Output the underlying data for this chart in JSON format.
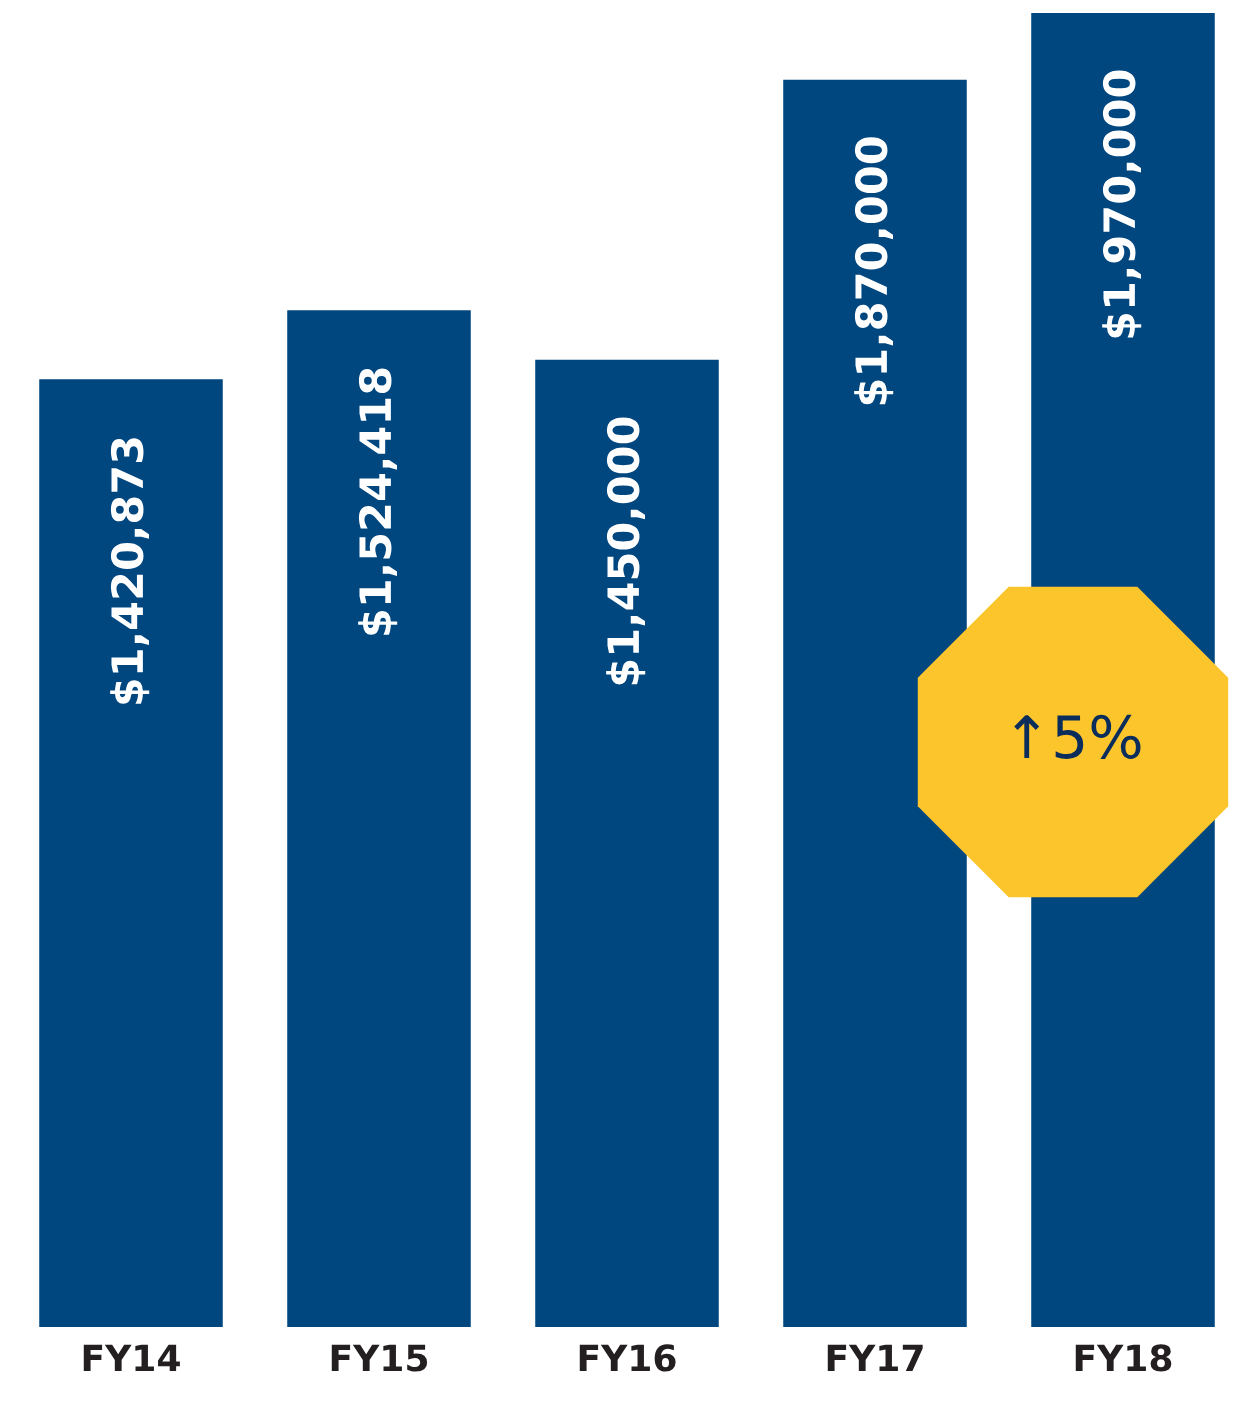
{
  "chart_data": {
    "type": "bar",
    "categories": [
      "FY14",
      "FY15",
      "FY16",
      "FY17",
      "FY18"
    ],
    "values": [
      1420873,
      1524418,
      1450000,
      1870000,
      1970000
    ],
    "value_labels": [
      "$1,420,873",
      "$1,524,418",
      "$1,450,000",
      "$1,870,000",
      "$1,970,000"
    ],
    "color": "#00467f",
    "tick_labels": "x",
    "annotations": [
      "↑5%"
    ]
  }
}
